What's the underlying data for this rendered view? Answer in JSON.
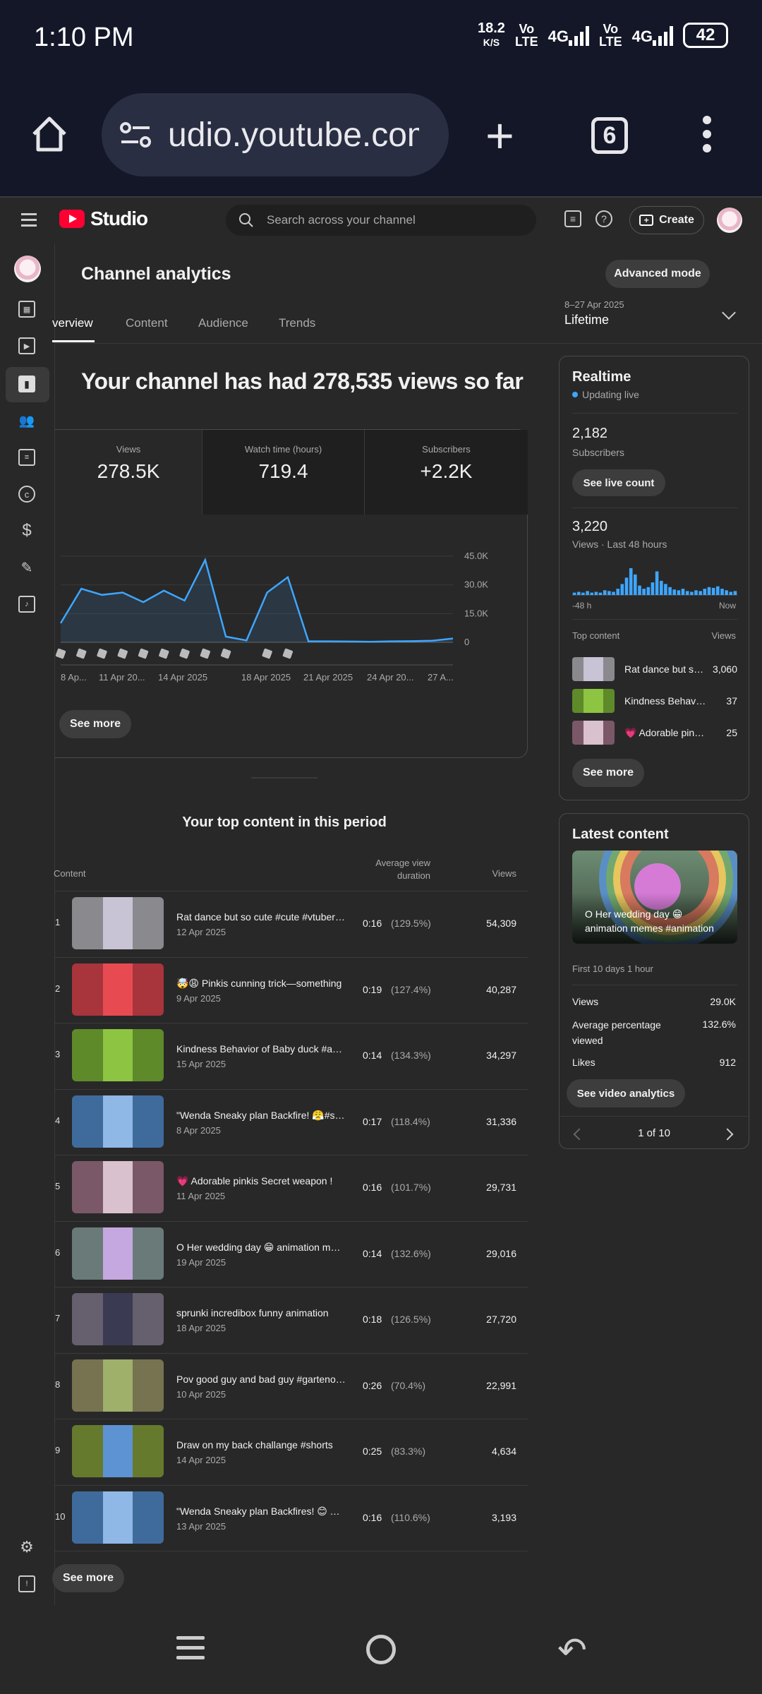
{
  "status_bar": {
    "time": "1:10 PM",
    "net_speed_value": "18.2",
    "net_speed_unit": "K/S",
    "volte1_a": "Vo",
    "volte1_b": "LTE",
    "net1": "4G",
    "volte2_a": "Vo",
    "volte2_b": "LTE",
    "net2": "4G",
    "battery": "42"
  },
  "browser": {
    "url": "udio.youtube.com",
    "tab_count": "6"
  },
  "header": {
    "logo_text": "Studio",
    "search_placeholder": "Search across your channel",
    "create_label": "Create"
  },
  "page": {
    "title": "Channel analytics",
    "advanced_mode": "Advanced mode",
    "tabs": [
      "verview",
      "Content",
      "Audience",
      "Trends"
    ],
    "date_range": "8–27 Apr 2025",
    "date_label": "Lifetime",
    "headline": "Your channel has had 278,535 views so far"
  },
  "metrics": [
    {
      "label": "Views",
      "value": "278.5K"
    },
    {
      "label": "Watch time (hours)",
      "value": "719.4"
    },
    {
      "label": "Subscribers",
      "value": "+2.2K"
    }
  ],
  "chart_data": {
    "type": "area",
    "x": [
      "8 Apr",
      "9 Apr",
      "10 Apr",
      "11 Apr",
      "12 Apr",
      "13 Apr",
      "14 Apr",
      "15 Apr",
      "16 Apr",
      "17 Apr",
      "18 Apr",
      "19 Apr",
      "20 Apr",
      "21 Apr",
      "22 Apr",
      "23 Apr",
      "24 Apr",
      "25 Apr",
      "26 Apr",
      "27 Apr"
    ],
    "x_tick_labels": [
      "8 Ap...",
      "11 Apr 20...",
      "14 Apr 2025",
      "18 Apr 2025",
      "21 Apr 2025",
      "24 Apr 20...",
      "27 A..."
    ],
    "y_tick_labels": [
      "45.0K",
      "30.0K",
      "15.0K",
      "0"
    ],
    "series": [
      {
        "values": [
          10000,
          28000,
          24800,
          26000,
          21000,
          27000,
          21800,
          43000,
          3000,
          1000,
          26000,
          34000,
          500,
          500,
          400,
          300,
          500,
          600,
          800,
          2000
        ]
      }
    ],
    "ylim": [
      0,
      45000
    ],
    "grid": true,
    "color": "#3ea6ff"
  },
  "see_more": "See more",
  "top_content": {
    "title": "Your top content in this period",
    "col_content": "Content",
    "col_avg_1": "Average view",
    "col_avg_2": "duration",
    "col_views": "Views",
    "rows": [
      {
        "rank": "1",
        "title": "Rat dance but so cute #cute #vtuber #shorts",
        "date": "12 Apr 2025",
        "avg": "0:16",
        "pct": "(129.5%)",
        "views": "54,309",
        "bg": "#8a8a8e",
        "fg": "#c9c3d6"
      },
      {
        "rank": "2",
        "title": "🤯😩 Pinkis cunning trick—something",
        "date": "9 Apr 2025",
        "avg": "0:19",
        "pct": "(127.4%)",
        "views": "40,287",
        "bg": "#a8343c",
        "fg": "#e84a52"
      },
      {
        "rank": "3",
        "title": "Kindness Behavior of Baby duck #animation",
        "date": "15 Apr 2025",
        "avg": "0:14",
        "pct": "(134.3%)",
        "views": "34,297",
        "bg": "#5e8a2a",
        "fg": "#8dc441"
      },
      {
        "rank": "4",
        "title": "\"Wenda Sneaky plan Backfire! 😤#shorts",
        "date": "8 Apr 2025",
        "avg": "0:17",
        "pct": "(118.4%)",
        "views": "31,336",
        "bg": "#3f6b9c",
        "fg": "#8fb8e6"
      },
      {
        "rank": "5",
        "title": "💗 Adorable pinkis Secret weapon !",
        "date": "11 Apr 2025",
        "avg": "0:16",
        "pct": "(101.7%)",
        "views": "29,731",
        "bg": "#7a5868",
        "fg": "#d9c1cd"
      },
      {
        "rank": "6",
        "title": "O Her wedding day 😁 animation memes",
        "date": "19 Apr 2025",
        "avg": "0:14",
        "pct": "(132.6%)",
        "views": "29,016",
        "bg": "#6a7a78",
        "fg": "#c5a8e0"
      },
      {
        "rank": "7",
        "title": "sprunki incredibox funny animation",
        "date": "18 Apr 2025",
        "avg": "0:18",
        "pct": "(126.5%)",
        "views": "27,720",
        "bg": "#66606e",
        "fg": "#3a3a52"
      },
      {
        "rank": "8",
        "title": "Pov good guy and bad guy #gartenofbanban",
        "date": "10 Apr 2025",
        "avg": "0:26",
        "pct": "(70.4%)",
        "views": "22,991",
        "bg": "#777250",
        "fg": "#9fb06a"
      },
      {
        "rank": "9",
        "title": "Draw on my back challange #shorts",
        "date": "14 Apr 2025",
        "avg": "0:25",
        "pct": "(83.3%)",
        "views": "4,634",
        "bg": "#667a2e",
        "fg": "#5d93d2"
      },
      {
        "rank": "10",
        "title": "\"Wenda Sneaky plan Backfires! 😊 The",
        "date": "13 Apr 2025",
        "avg": "0:16",
        "pct": "(110.6%)",
        "views": "3,193",
        "bg": "#3f6b9c",
        "fg": "#8fb8e6"
      }
    ]
  },
  "realtime": {
    "title": "Realtime",
    "live": "Updating live",
    "subs": "2,182",
    "subs_label": "Subscribers",
    "live_count_btn": "See live count",
    "views": "3,220",
    "views_label": "Views · Last 48 hours",
    "axis_start": "-48 h",
    "axis_end": "Now",
    "bars": [
      3,
      4,
      3,
      5,
      3,
      4,
      3,
      6,
      5,
      4,
      8,
      14,
      22,
      34,
      26,
      12,
      8,
      10,
      16,
      30,
      18,
      14,
      10,
      7,
      6,
      8,
      5,
      4,
      6,
      5,
      8,
      10,
      9,
      11,
      8,
      6,
      4,
      5
    ],
    "top_label": "Top content",
    "top_views_label": "Views",
    "top_items": [
      {
        "title": "Rat dance but so cute",
        "views": "3,060",
        "bg": "#8a8a8e",
        "fg": "#c9c3d6"
      },
      {
        "title": "Kindness Behavior of Baby duck",
        "views": "37",
        "bg": "#5e8a2a",
        "fg": "#8dc441"
      },
      {
        "title": "💗 Adorable pinkis Secret weapon",
        "views": "25",
        "bg": "#7a5868",
        "fg": "#d9c1cd"
      }
    ],
    "see_more": "See more"
  },
  "latest": {
    "title": "Latest content",
    "caption_line1": "O Her wedding day 😁",
    "caption_line2": "animation memes #animation",
    "first_days": "First 10 days 1 hour",
    "views_label": "Views",
    "views": "29.0K",
    "avg_pct_label_1": "Average percentage",
    "avg_pct_label_2": "viewed",
    "avg_pct": "132.6%",
    "likes_label": "Likes",
    "likes": "912",
    "video_analytics": "See video analytics",
    "pager": "1 of 10"
  },
  "colors": {
    "accent": "#3ea6ff",
    "brand": "#ff0033"
  }
}
